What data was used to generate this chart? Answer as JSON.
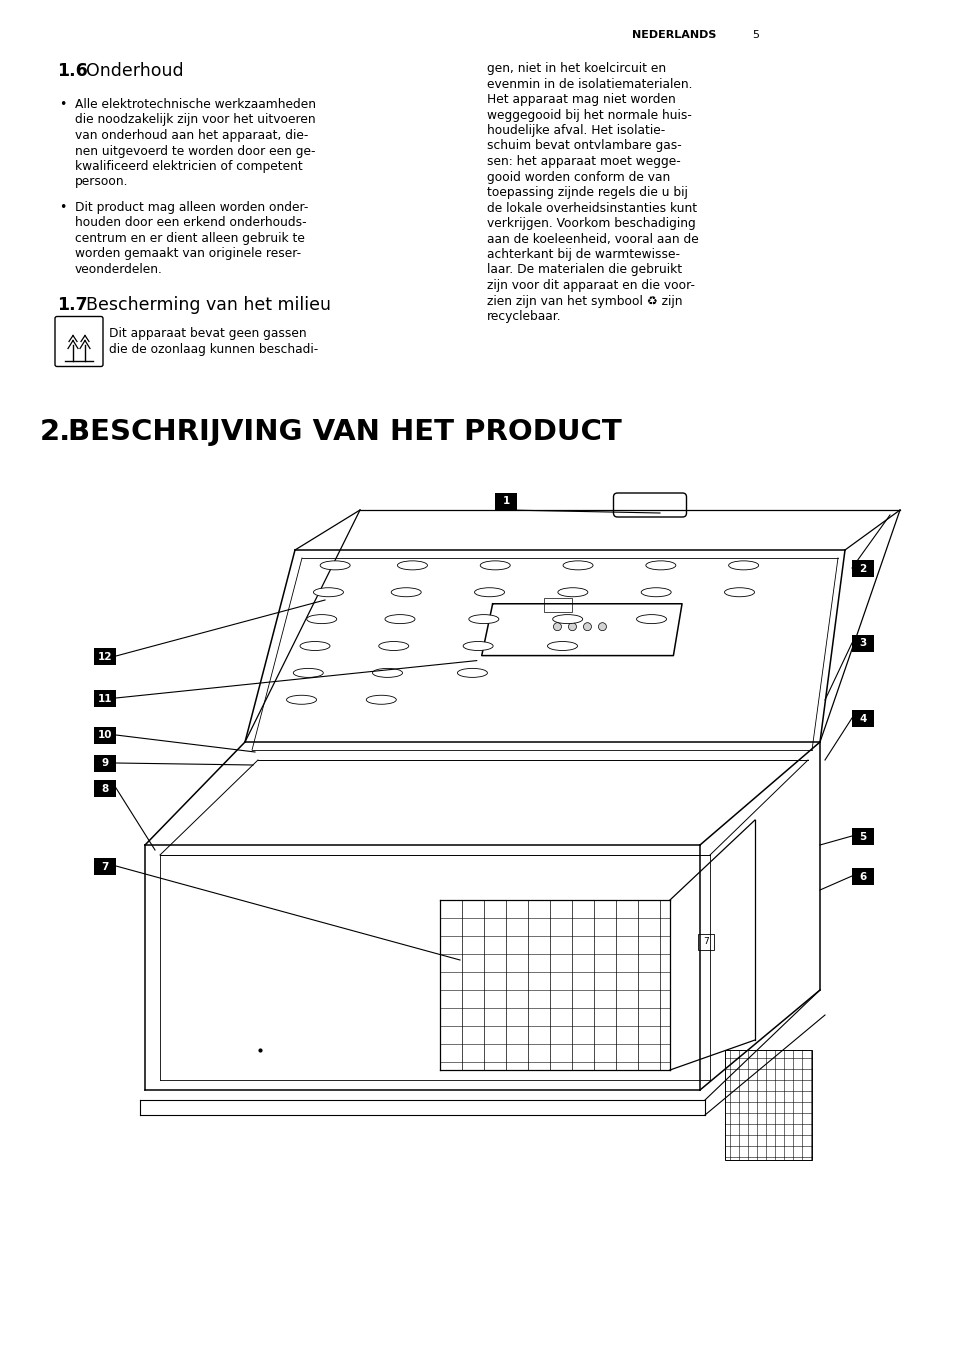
{
  "bg_color": "#ffffff",
  "page_width": 9.54,
  "page_height": 13.52,
  "header_text": "NEDERLANDS",
  "header_page": "5",
  "section_16_bullets_1": [
    "Alle elektrotechnische werkzaamheden",
    "die noodzakelijk zijn voor het uitvoeren",
    "van onderhoud aan het apparaat, die-",
    "nen uitgevoerd te worden door een ge-",
    "kwalificeerd elektricien of competent",
    "persoon."
  ],
  "section_16_bullets_2": [
    "Dit product mag alleen worden onder-",
    "houden door een erkend onderhouds-",
    "centrum en er dient alleen gebruik te",
    "worden gemaakt van originele reser-",
    "veonderdelen."
  ],
  "right_col_lines": [
    "gen, niet in het koelcircuit en",
    "evenmin in de isolatiematerialen.",
    "Het apparaat mag niet worden",
    "weggegooid bij het normale huis-",
    "houdelijke afval. Het isolatie-",
    "schuim bevat ontvlambare gas-",
    "sen: het apparaat moet wegge-",
    "gooid worden conform de van",
    "toepassing zijnde regels die u bij",
    "de lokale overheidsinstanties kunt",
    "verkrijgen. Voorkom beschadiging",
    "aan de koeleenheid, vooral aan de",
    "achterkant bij de warmtewisse-",
    "laar. De materialen die gebruikt",
    "zijn voor dit apparaat en die voor-",
    "zien zijn van het symbool ♻ zijn",
    "recyclebaar."
  ],
  "icon_text_lines": [
    "Dit apparaat bevat geen gassen",
    "die de ozonlaag kunnen beschadi-"
  ]
}
